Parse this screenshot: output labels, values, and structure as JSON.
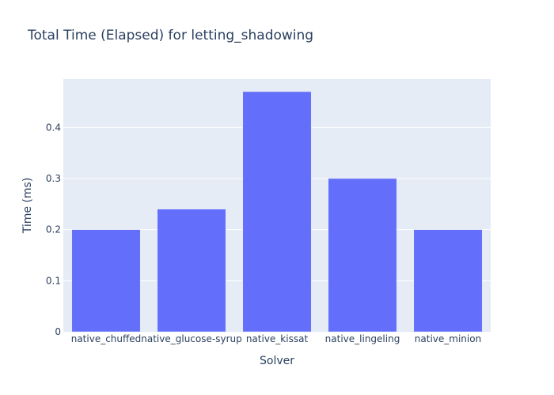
{
  "colors": {
    "plot_bg": "#e5ecf6",
    "bar": "#636efa",
    "grid": "#ffffff",
    "text": "#2a3f5f"
  },
  "chart_data": {
    "type": "bar",
    "title": "Total Time (Elapsed) for letting_shadowing",
    "xlabel": "Solver",
    "ylabel": "Time (ms)",
    "categories": [
      "native_chuffed",
      "native_glucose-syrup",
      "native_kissat",
      "native_lingeling",
      "native_minion"
    ],
    "values": [
      0.2,
      0.24,
      0.47,
      0.3,
      0.2
    ],
    "ylim": [
      0,
      0.4947
    ],
    "yticks": [
      0,
      0.1,
      0.2,
      0.3,
      0.4
    ],
    "ytick_labels": [
      "0",
      "0.1",
      "0.2",
      "0.3",
      "0.4"
    ],
    "grid": true,
    "legend": "none"
  }
}
